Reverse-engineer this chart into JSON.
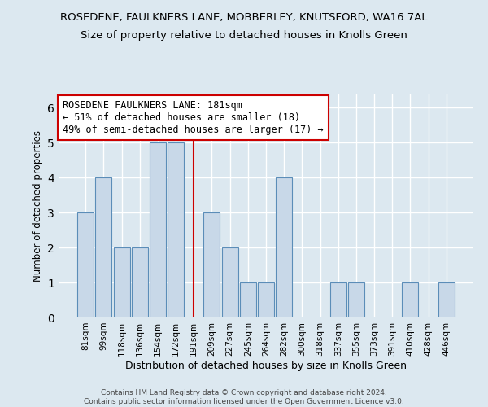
{
  "title": "ROSEDENE, FAULKNERS LANE, MOBBERLEY, KNUTSFORD, WA16 7AL",
  "subtitle": "Size of property relative to detached houses in Knolls Green",
  "xlabel": "Distribution of detached houses by size in Knolls Green",
  "ylabel": "Number of detached properties",
  "footer_line1": "Contains HM Land Registry data © Crown copyright and database right 2024.",
  "footer_line2": "Contains public sector information licensed under the Open Government Licence v3.0.",
  "categories": [
    "81sqm",
    "99sqm",
    "118sqm",
    "136sqm",
    "154sqm",
    "172sqm",
    "191sqm",
    "209sqm",
    "227sqm",
    "245sqm",
    "264sqm",
    "282sqm",
    "300sqm",
    "318sqm",
    "337sqm",
    "355sqm",
    "373sqm",
    "391sqm",
    "410sqm",
    "428sqm",
    "446sqm"
  ],
  "values": [
    3,
    4,
    2,
    2,
    5,
    5,
    0,
    3,
    2,
    1,
    1,
    4,
    0,
    0,
    1,
    1,
    0,
    0,
    1,
    0,
    1
  ],
  "bar_color": "#c8d8e8",
  "bar_edge_color": "#5b8db8",
  "highlight_bar_index": 6,
  "highlight_line_color": "#cc0000",
  "annotation_text": "ROSEDENE FAULKNERS LANE: 181sqm\n← 51% of detached houses are smaller (18)\n49% of semi-detached houses are larger (17) →",
  "annotation_box_color": "#ffffff",
  "annotation_box_edge_color": "#cc0000",
  "ylim": [
    0,
    6.4
  ],
  "yticks": [
    0,
    1,
    2,
    3,
    4,
    5,
    6
  ],
  "background_color": "#dce8f0",
  "plot_bg_color": "#dce8f0",
  "grid_color": "#ffffff",
  "title_fontsize": 9.5,
  "subtitle_fontsize": 9.5,
  "xlabel_fontsize": 9,
  "ylabel_fontsize": 8.5,
  "tick_fontsize": 7.5,
  "annotation_fontsize": 8.5
}
